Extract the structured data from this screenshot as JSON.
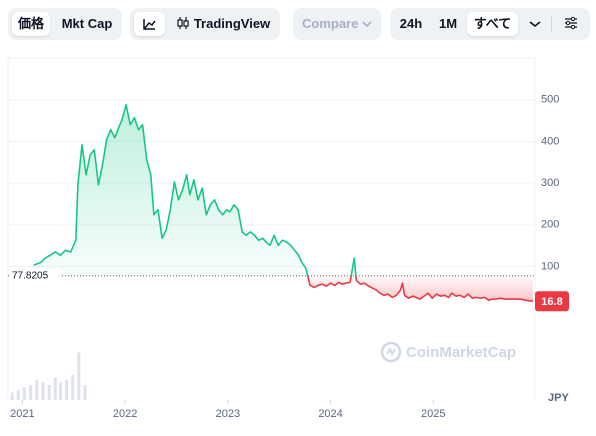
{
  "toolbar": {
    "price": "価格",
    "mkt_cap": "Mkt Cap",
    "tradingview": "TradingView",
    "compare": "Compare",
    "ranges": [
      "24h",
      "1M",
      "すべて"
    ]
  },
  "chart_data": {
    "type": "line",
    "x": [
      2021.11,
      2021.18,
      2021.22,
      2021.27,
      2021.32,
      2021.37,
      2021.42,
      2021.47,
      2021.52,
      2021.54,
      2021.58,
      2021.62,
      2021.66,
      2021.7,
      2021.74,
      2021.78,
      2021.82,
      2021.86,
      2021.9,
      2021.93,
      2021.97,
      2022.01,
      2022.05,
      2022.09,
      2022.13,
      2022.17,
      2022.21,
      2022.25,
      2022.28,
      2022.32,
      2022.36,
      2022.4,
      2022.44,
      2022.48,
      2022.52,
      2022.56,
      2022.6,
      2022.63,
      2022.67,
      2022.71,
      2022.75,
      2022.79,
      2022.83,
      2022.87,
      2022.91,
      2022.95,
      2022.99,
      2023.02,
      2023.06,
      2023.1,
      2023.14,
      2023.18,
      2023.22,
      2023.26,
      2023.3,
      2023.34,
      2023.37,
      2023.41,
      2023.45,
      2023.49,
      2023.53,
      2023.57,
      2023.61,
      2023.65,
      2023.69,
      2023.72,
      2023.76,
      2023.8,
      2023.84,
      2023.88,
      2023.92,
      2023.96,
      2024.0,
      2024.04,
      2024.08,
      2024.11,
      2024.15,
      2024.19,
      2024.23,
      2024.25,
      2024.29,
      2024.33,
      2024.37,
      2024.41,
      2024.45,
      2024.48,
      2024.52,
      2024.56,
      2024.6,
      2024.64,
      2024.68,
      2024.7,
      2024.72,
      2024.76,
      2024.8,
      2024.83,
      2024.87,
      2024.91,
      2024.95,
      2024.99,
      2025.03,
      2025.07,
      2025.11,
      2025.15,
      2025.18,
      2025.22,
      2025.26,
      2025.3,
      2025.34,
      2025.38,
      2025.42,
      2025.46,
      2025.5,
      2025.54,
      2025.57,
      2025.61,
      2025.65,
      2025.7,
      2025.75,
      2025.8,
      2025.85,
      2025.9,
      2025.97
    ],
    "values": [
      103,
      110,
      120,
      127,
      135,
      127,
      139,
      135,
      163,
      296,
      392,
      320,
      368,
      380,
      296,
      344,
      404,
      428,
      409,
      428,
      452,
      488,
      440,
      457,
      428,
      440,
      356,
      320,
      224,
      236,
      168,
      188,
      236,
      303,
      260,
      284,
      320,
      272,
      308,
      260,
      288,
      224,
      248,
      260,
      236,
      224,
      236,
      231,
      248,
      236,
      183,
      175,
      183,
      175,
      163,
      168,
      159,
      151,
      175,
      151,
      163,
      159,
      151,
      139,
      127,
      110,
      96,
      55,
      50,
      55,
      58,
      53,
      60,
      55,
      62,
      58,
      60,
      62,
      120,
      67,
      58,
      60,
      53,
      48,
      43,
      36,
      31,
      34,
      26,
      31,
      43,
      60,
      31,
      24,
      29,
      26,
      22,
      29,
      36,
      24,
      34,
      29,
      31,
      26,
      36,
      29,
      31,
      26,
      34,
      24,
      26,
      24,
      26,
      19,
      22,
      22,
      24,
      22,
      22,
      22,
      22,
      19,
      16.8
    ],
    "baseline": 77.8205,
    "up_color": "#16c784",
    "down_color": "#ea3943",
    "volume": {
      "x": [
        2020.9,
        2020.96,
        2021.02,
        2021.08,
        2021.14,
        2021.2,
        2021.26,
        2021.32,
        2021.37,
        2021.43,
        2021.49,
        2021.55,
        2021.61
      ],
      "values": [
        15,
        20,
        25,
        30,
        40,
        35,
        30,
        45,
        35,
        40,
        50,
        95,
        30
      ],
      "vlim": [
        0,
        100
      ],
      "color": "#cfd6e4"
    },
    "xlim": [
      2020.86,
      2025.99
    ],
    "xticks": [
      2021,
      2022,
      2023,
      2024,
      2025
    ],
    "ylim": [
      -220,
      600
    ],
    "yticks": [
      100,
      200,
      300,
      400,
      500
    ],
    "y_unit": "JPY",
    "watermark": "CoinMarketCap",
    "grid": true
  }
}
